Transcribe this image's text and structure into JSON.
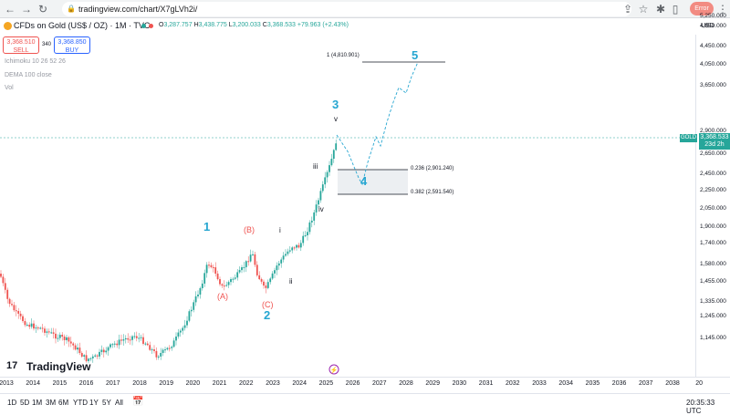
{
  "browser": {
    "url": "tradingview.com/chart/X7gLVh2i/",
    "error_label": "Error"
  },
  "header": {
    "title": "CFDs on Gold (US$ / OZ) · 1M · TVC",
    "open_label": "O",
    "open": "3,287.757",
    "high_label": "H",
    "high": "3,438.775",
    "low_label": "L",
    "low": "3,200.033",
    "close_label": "C",
    "close": "3,368.533",
    "change": "+79.963 (+2.43%)",
    "currency": "USD"
  },
  "trade": {
    "sell_price": "3,368.510",
    "sell_label": "SELL",
    "spread": "340",
    "buy_price": "3,368.850",
    "buy_label": "BUY"
  },
  "indicators": [
    {
      "label": "Ichimoku 10 26 52 26"
    },
    {
      "label": "DEMA 100 close"
    },
    {
      "label": "Vol"
    }
  ],
  "price_axis": {
    "ticks": [
      "5,250.000",
      "4,850.000",
      "4,450.000",
      "4,050.000",
      "3,650.000",
      "2,900.000",
      "2,650.000",
      "2,450.000",
      "2,250.000",
      "2,050.000",
      "1,900.000",
      "1,740.000",
      "1,580.000",
      "1,455.000",
      "1,335.000",
      "1,245.000",
      "1,145.000"
    ],
    "symbol_tag": "GOLD",
    "last_price": "3,368.533",
    "countdown": "23d 2h"
  },
  "time_axis": {
    "labels": [
      "2013",
      "2014",
      "2015",
      "2016",
      "2017",
      "2018",
      "2019",
      "2020",
      "2021",
      "2022",
      "2023",
      "2024",
      "2025",
      "2026",
      "2027",
      "2028",
      "2029",
      "2030",
      "2031",
      "2032",
      "2033",
      "2034",
      "2035",
      "2036",
      "2037",
      "2038",
      "20"
    ]
  },
  "annotations": {
    "wave_1": "1",
    "wave_2": "2",
    "wave_3": "3",
    "wave_4": "4",
    "wave_5": "5",
    "wave_A": "(A)",
    "wave_B": "(B)",
    "wave_C": "(C)",
    "sub_i": "i",
    "sub_ii": "ii",
    "sub_iii": "iii",
    "sub_iv": "iv",
    "sub_v": "v",
    "fib_target": "1 (4,810.901)",
    "fib_236": "0.236 (2,901.240)",
    "fib_382": "0.382 (2,591.540)"
  },
  "bottom_bar": {
    "timeframes": [
      "1D",
      "5D",
      "1M",
      "3M",
      "6M",
      "YTD",
      "1Y",
      "5Y",
      "All"
    ],
    "clock": "20:35:33 UTC"
  },
  "branding": {
    "logo_text": "TradingView"
  },
  "colors": {
    "wave_primary": "#26a6d1",
    "wave_correction": "#ef5350",
    "up_candle": "#26a69a",
    "down_candle": "#ef5350",
    "price_line": "#26a69a"
  }
}
